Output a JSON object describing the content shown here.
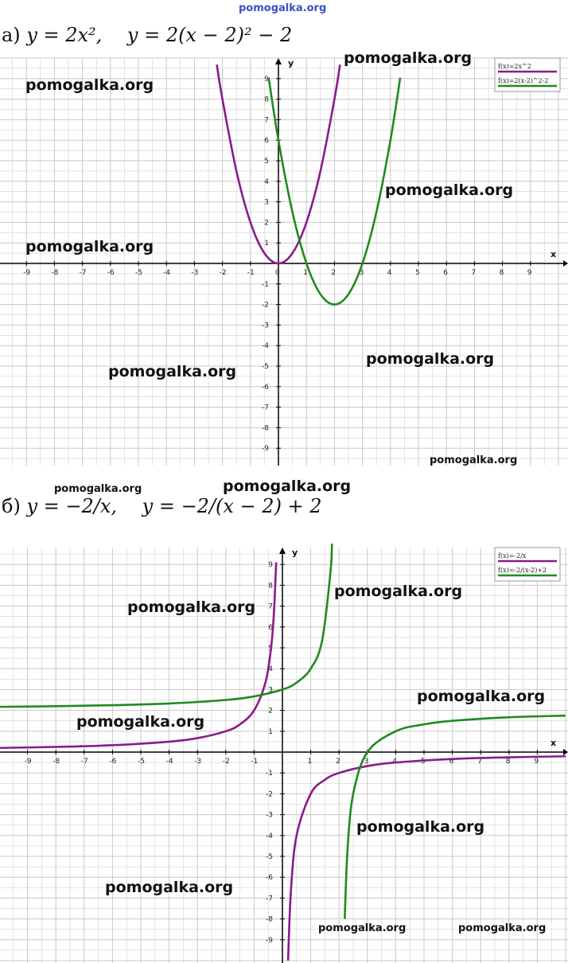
{
  "watermark_top": "pomogalka.org",
  "watermark": "pomogalka.org",
  "part_a": {
    "label": "а)",
    "formula_1": "y = 2x², ",
    "formula_2": "y = 2(x − 2)² − 2"
  },
  "part_b": {
    "label": "б)",
    "formula_1": "y = −2/x, ",
    "formula_2": "y = −2/(x − 2) + 2"
  },
  "colors": {
    "purple": "#8b1a8b",
    "green": "#1f8a1f",
    "grid": "#c8c8c8",
    "axis": "#000000"
  },
  "chart_data": [
    {
      "type": "line",
      "xlabel": "x",
      "ylabel": "y",
      "xlim": [
        -10,
        10
      ],
      "ylim": [
        -10,
        10
      ],
      "x_ticks": [
        -9,
        -8,
        -7,
        -6,
        -5,
        -4,
        -3,
        -2,
        -1,
        0,
        1,
        2,
        3,
        4,
        5,
        6,
        7,
        8,
        9
      ],
      "y_ticks": [
        -9,
        -8,
        -7,
        -6,
        -5,
        -4,
        -3,
        -2,
        -1,
        1,
        2,
        3,
        4,
        5,
        6,
        7,
        8,
        9
      ],
      "grid": true,
      "legend_position": "top-right",
      "series": [
        {
          "name": "f(x)=2x^2",
          "color": "purple",
          "x": [
            -2.2,
            -2,
            -1.5,
            -1,
            -0.5,
            0,
            0.5,
            1,
            1.5,
            2,
            2.2
          ],
          "y": [
            9.68,
            8,
            4.5,
            2,
            0.5,
            0,
            0.5,
            2,
            4.5,
            8,
            9.68
          ]
        },
        {
          "name": "f(x)=2(x-2)^2-2",
          "color": "green",
          "x": [
            -0.35,
            0,
            0.5,
            1,
            1.5,
            2,
            2.5,
            3,
            3.5,
            4,
            4.35
          ],
          "y": [
            9.05,
            6,
            2.5,
            0,
            -1.5,
            -2,
            -1.5,
            0,
            2.5,
            6,
            9.05
          ]
        }
      ]
    },
    {
      "type": "line",
      "xlabel": "x",
      "ylabel": "y",
      "xlim": [
        -10,
        10
      ],
      "ylim": [
        -10,
        10
      ],
      "x_ticks": [
        -9,
        -8,
        -7,
        -6,
        -5,
        -4,
        -3,
        -2,
        -1,
        1,
        2,
        3,
        4,
        5,
        6,
        7,
        8,
        9
      ],
      "y_ticks": [
        -9,
        -8,
        -7,
        -6,
        -5,
        -4,
        -3,
        -2,
        -1,
        1,
        2,
        3,
        4,
        5,
        6,
        7,
        8,
        9
      ],
      "grid": true,
      "legend_position": "top-right",
      "series": [
        {
          "name": "f(x)=-2/x",
          "color": "purple",
          "x": [
            -10,
            -8,
            -6,
            -4,
            -3,
            -2,
            -1.5,
            -1,
            -0.6,
            -0.4,
            -0.3,
            -0.22,
            0.2,
            0.3,
            0.5,
            1,
            1.5,
            2,
            3,
            4,
            6,
            8,
            10
          ],
          "y": [
            0.2,
            0.25,
            0.33,
            0.5,
            0.67,
            1,
            1.33,
            2,
            3.33,
            5,
            6.67,
            9.1,
            -10,
            -6.67,
            -4,
            -2,
            -1.33,
            -1,
            -0.67,
            -0.5,
            -0.33,
            -0.25,
            -0.2
          ]
        },
        {
          "name": "f(x)=-2/(x-2)+2",
          "color": "green",
          "x": [
            -10,
            -8,
            -6,
            -4,
            -2,
            -1,
            0,
            0.5,
            1,
            1.4,
            1.7,
            1.75,
            2.2,
            2.3,
            2.5,
            3,
            4,
            5,
            6,
            8,
            10
          ],
          "y": [
            2.17,
            2.2,
            2.25,
            2.33,
            2.5,
            2.67,
            3,
            3.33,
            4,
            5.33,
            8.67,
            10,
            -8,
            -4.67,
            -2,
            0,
            1,
            1.33,
            1.5,
            1.67,
            1.75
          ]
        }
      ]
    }
  ]
}
